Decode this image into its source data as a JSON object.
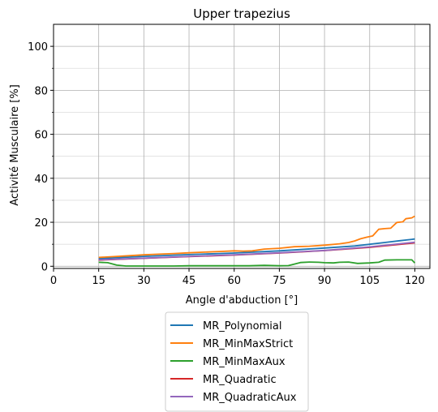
{
  "chart_data": {
    "type": "line",
    "title": "Upper trapezius",
    "xlabel": "Angle d'abduction [°]",
    "ylabel": "Activité Musculaire [%]",
    "xlim": [
      0,
      125
    ],
    "ylim": [
      -1,
      110
    ],
    "xticks": [
      0,
      15,
      30,
      45,
      60,
      75,
      90,
      105,
      120
    ],
    "yticks": [
      0,
      20,
      40,
      60,
      80,
      100
    ],
    "yminor": [
      10,
      30,
      50,
      70,
      90
    ],
    "grid": true,
    "legend_position": "below",
    "series": [
      {
        "name": "MR_Polynomial",
        "color": "#1f77b4",
        "x": [
          15,
          30,
          45,
          60,
          75,
          90,
          100,
          105,
          110,
          115,
          120
        ],
        "y": [
          3.5,
          4.5,
          5.3,
          6.0,
          7.0,
          8.3,
          9.2,
          10.0,
          10.8,
          11.6,
          12.4
        ]
      },
      {
        "name": "MR_MinMaxStrict",
        "color": "#ff7f0e",
        "x": [
          15,
          20,
          25,
          30,
          35,
          40,
          45,
          50,
          55,
          60,
          63,
          66,
          70,
          75,
          80,
          85,
          90,
          95,
          98,
          100,
          102,
          104,
          106,
          108,
          110,
          112,
          114,
          116,
          117,
          119,
          120
        ],
        "y": [
          4.0,
          4.4,
          4.8,
          5.2,
          5.5,
          5.8,
          6.1,
          6.4,
          6.7,
          7.0,
          6.9,
          7.0,
          7.8,
          8.2,
          8.9,
          9.1,
          9.6,
          10.2,
          10.8,
          11.5,
          12.5,
          13.2,
          13.8,
          16.8,
          17.1,
          17.3,
          19.9,
          20.2,
          21.6,
          22.0,
          22.8
        ]
      },
      {
        "name": "MR_MinMaxAux",
        "color": "#2ca02c",
        "x": [
          15,
          18,
          21,
          24,
          30,
          40,
          45,
          60,
          65,
          70,
          75,
          78,
          80,
          82,
          85,
          88,
          90,
          93,
          95,
          98,
          101,
          105,
          108,
          110,
          114,
          118,
          119,
          120
        ],
        "y": [
          1.8,
          1.6,
          0.5,
          0.1,
          0.1,
          0.1,
          0.2,
          0.2,
          0.2,
          0.4,
          0.2,
          0.3,
          1.0,
          1.7,
          1.9,
          1.8,
          1.6,
          1.5,
          1.8,
          1.9,
          1.3,
          1.5,
          1.8,
          2.8,
          2.9,
          2.9,
          2.9,
          1.5
        ]
      },
      {
        "name": "MR_Quadratic",
        "color": "#d62728",
        "x": [
          15,
          30,
          45,
          60,
          75,
          90,
          105,
          120
        ],
        "y": [
          2.8,
          3.6,
          4.4,
          5.1,
          6.0,
          7.1,
          8.6,
          10.6
        ]
      },
      {
        "name": "MR_QuadraticAux",
        "color": "#9467bd",
        "x": [
          15,
          30,
          45,
          60,
          75,
          90,
          105,
          120
        ],
        "y": [
          2.9,
          3.7,
          4.5,
          5.2,
          6.1,
          7.2,
          8.8,
          10.9
        ]
      }
    ]
  }
}
